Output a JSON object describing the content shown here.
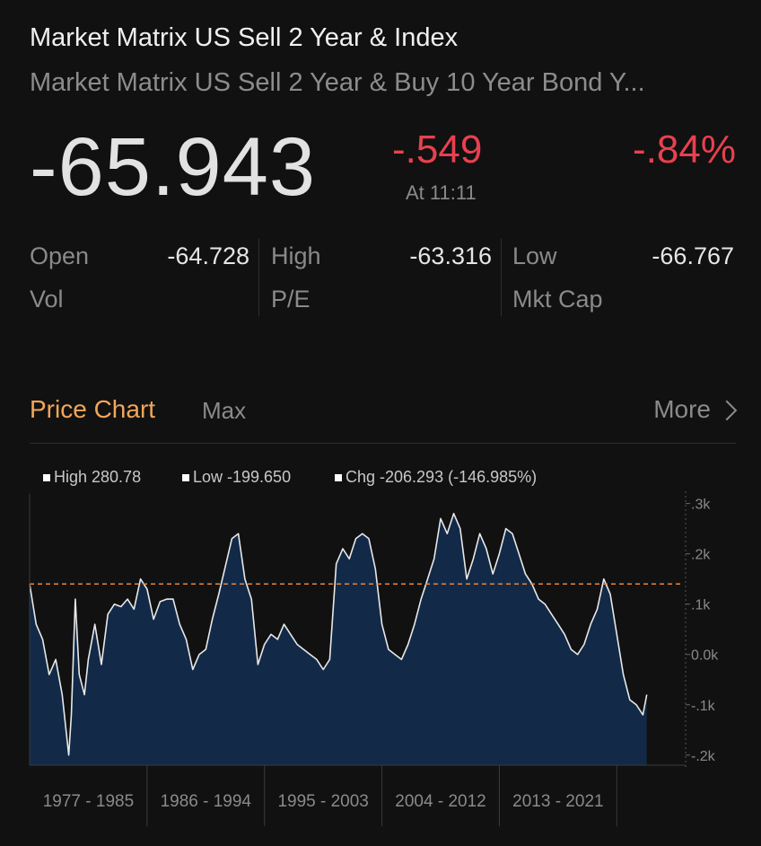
{
  "header": {
    "title": "Market Matrix US Sell 2 Year & Index",
    "subtitle": "Market Matrix US Sell 2 Year & Buy 10 Year Bond Y...",
    "price": "-65.943",
    "change": "-.549",
    "change_pct": "-.84%",
    "time": "At 11:11"
  },
  "stats": {
    "open_label": "Open",
    "open_value": "-64.728",
    "high_label": "High",
    "high_value": "-63.316",
    "low_label": "Low",
    "low_value": "-66.767",
    "vol_label": "Vol",
    "pe_label": "P/E",
    "mktcap_label": "Mkt Cap"
  },
  "chart_header": {
    "tab": "Price Chart",
    "range": "Max",
    "more": "More"
  },
  "colors": {
    "up": "#e9404f",
    "accent": "#f2a65a",
    "area_fill": "#122a48",
    "line": "#e8e8e8",
    "ref_line": "#e8863a"
  },
  "chart_data": {
    "type": "area",
    "legend": [
      "High 280.78",
      "Low -199.650",
      "Chg -206.293 (-146.985%)"
    ],
    "yticks": [
      "-.2k",
      "-.1k",
      "0.0k",
      ".1k",
      ".2k",
      ".3k"
    ],
    "ytick_values": [
      -200,
      -100,
      0,
      100,
      200,
      300
    ],
    "ylim": [
      -220,
      310
    ],
    "xlim": [
      1977,
      2027
    ],
    "x_categories": [
      "1977 - 1985",
      "1986 - 1994",
      "1995 - 2003",
      "2004 - 2012",
      "2013 - 2021"
    ],
    "x_category_bounds": [
      [
        1977,
        1986
      ],
      [
        1986,
        1995
      ],
      [
        1995,
        2004
      ],
      [
        2004,
        2013
      ],
      [
        2013,
        2022
      ]
    ],
    "reference_line": 140,
    "grid": false,
    "legend_placement": "top-left",
    "x": [
      1977.0,
      1977.5,
      1978.0,
      1978.5,
      1979.0,
      1979.5,
      1980.0,
      1980.2,
      1980.5,
      1980.8,
      1981.0,
      1981.2,
      1981.5,
      1982.0,
      1982.5,
      1983.0,
      1983.5,
      1984.0,
      1984.5,
      1985.0,
      1985.5,
      1986.0,
      1986.5,
      1987.0,
      1987.5,
      1988.0,
      1988.5,
      1989.0,
      1989.5,
      1990.0,
      1990.5,
      1991.0,
      1991.5,
      1992.0,
      1992.5,
      1993.0,
      1993.5,
      1994.0,
      1994.5,
      1995.0,
      1995.5,
      1996.0,
      1996.5,
      1997.0,
      1997.5,
      1998.0,
      1998.5,
      1999.0,
      1999.5,
      2000.0,
      2000.5,
      2001.0,
      2001.5,
      2002.0,
      2002.5,
      2003.0,
      2003.5,
      2004.0,
      2004.5,
      2005.0,
      2005.5,
      2006.0,
      2006.5,
      2007.0,
      2007.5,
      2008.0,
      2008.5,
      2009.0,
      2009.5,
      2010.0,
      2010.5,
      2011.0,
      2011.5,
      2012.0,
      2012.5,
      2013.0,
      2013.5,
      2014.0,
      2014.5,
      2015.0,
      2015.5,
      2016.0,
      2016.5,
      2017.0,
      2017.5,
      2018.0,
      2018.5,
      2019.0,
      2019.5,
      2020.0,
      2020.5,
      2021.0,
      2021.5,
      2022.0,
      2022.5,
      2023.0,
      2023.5,
      2024.0,
      2024.3
    ],
    "y": [
      140,
      60,
      30,
      -40,
      -10,
      -80,
      -200,
      -120,
      110,
      -40,
      -60,
      -80,
      -10,
      60,
      -20,
      80,
      100,
      95,
      110,
      90,
      150,
      130,
      70,
      105,
      110,
      110,
      60,
      30,
      -30,
      0,
      10,
      70,
      120,
      175,
      230,
      240,
      150,
      110,
      -20,
      20,
      40,
      30,
      60,
      40,
      20,
      10,
      0,
      -10,
      -30,
      -10,
      180,
      210,
      190,
      230,
      240,
      230,
      170,
      60,
      10,
      0,
      -10,
      20,
      60,
      110,
      150,
      190,
      270,
      240,
      280,
      250,
      150,
      190,
      240,
      210,
      160,
      200,
      250,
      240,
      200,
      160,
      140,
      110,
      100,
      80,
      60,
      40,
      10,
      0,
      20,
      60,
      90,
      150,
      120,
      40,
      -40,
      -90,
      -100,
      -120,
      -80
    ]
  }
}
